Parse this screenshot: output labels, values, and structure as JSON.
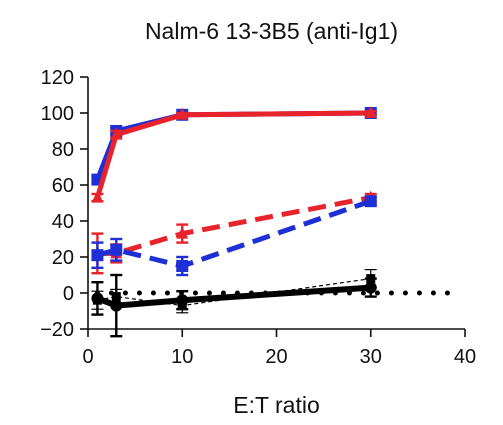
{
  "chart_data": {
    "type": "line",
    "title": "Nalm-6 13-3B5 (anti-Ig1)",
    "xlabel": "E:T ratio",
    "ylabel": "",
    "xlim": [
      0,
      40
    ],
    "ylim": [
      -20,
      120
    ],
    "xticks": [
      0,
      10,
      20,
      30,
      40
    ],
    "yticks": [
      -20,
      0,
      20,
      40,
      60,
      80,
      100,
      120
    ],
    "grid": false,
    "legend": "none",
    "series": [
      {
        "color": "#1f2fd6",
        "style": "solid",
        "marker": "square",
        "linewidth": 5,
        "x": [
          1,
          3,
          10,
          30
        ],
        "y": [
          63,
          90,
          99,
          100
        ],
        "err": [
          2,
          2,
          1,
          1
        ]
      },
      {
        "color": "#e8232b",
        "style": "solid",
        "marker": "triangle",
        "linewidth": 5,
        "x": [
          1,
          3,
          10,
          30
        ],
        "y": [
          53,
          88,
          99,
          100
        ],
        "err": [
          2,
          2,
          1,
          1
        ]
      },
      {
        "color": "#e8232b",
        "style": "dashed",
        "marker": "triangle",
        "linewidth": 5,
        "x": [
          1,
          3,
          10,
          30
        ],
        "y": [
          22,
          22,
          33,
          53
        ],
        "err": [
          11,
          5,
          5,
          2
        ]
      },
      {
        "color": "#1f2fd6",
        "style": "dashed",
        "marker": "square",
        "linewidth": 5,
        "x": [
          1,
          3,
          10,
          30
        ],
        "y": [
          21,
          24,
          15,
          51
        ],
        "err": [
          7,
          6,
          5,
          2
        ]
      },
      {
        "color": "#000000",
        "style": "solid",
        "marker": "circle",
        "linewidth": 6,
        "x": [
          1,
          3,
          10,
          30
        ],
        "y": [
          -3,
          -7,
          -4,
          3
        ],
        "err": [
          9,
          17,
          5,
          5
        ]
      },
      {
        "color": "#000000",
        "style": "thin-dashed",
        "marker": "square",
        "linewidth": 1.2,
        "x": [
          1,
          3,
          10,
          30
        ],
        "y": [
          -4,
          -2,
          -7,
          8
        ],
        "err": [
          5,
          4,
          4,
          5
        ]
      },
      {
        "color": "#000000",
        "style": "dotted",
        "marker": "none",
        "linewidth": 5,
        "x": [
          1,
          38.5
        ],
        "y": [
          0,
          0
        ],
        "err": [
          0,
          0
        ]
      }
    ]
  }
}
